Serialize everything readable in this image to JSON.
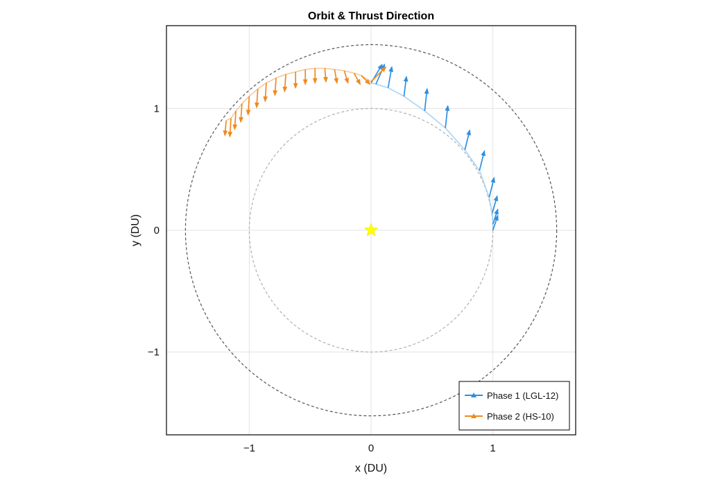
{
  "chart_data": {
    "type": "scatter",
    "title": "Orbit & Thrust Direction",
    "xlabel": "x  (DU)",
    "ylabel": "y  (DU)",
    "xlim": [
      -1.68,
      1.68
    ],
    "ylim": [
      -1.68,
      1.68
    ],
    "xticks": [
      -1,
      0,
      1
    ],
    "yticks": [
      -1,
      0,
      1
    ],
    "xtick_labels": [
      "−1",
      "0",
      "1"
    ],
    "ytick_labels": [
      "−1",
      "0",
      "1"
    ],
    "grid": true,
    "aspect": "equal",
    "legend_position": "bottom-right",
    "reference_circles": [
      {
        "radius": 1.0,
        "style": "dashed",
        "color": "#b0b0b0"
      },
      {
        "radius": 1.524,
        "style": "dashed",
        "color": "#555555"
      }
    ],
    "central_body": {
      "x": 0,
      "y": 0,
      "marker": "star",
      "color": "#ffff00"
    },
    "series": [
      {
        "name": "Phase 1  (LGL-12)",
        "color": "#2e8fe0",
        "trajectory_color": "#a9d4f5",
        "points": [
          {
            "x": 1.0,
            "y": 0.0,
            "dx": 0.04,
            "dy": 0.12
          },
          {
            "x": 1.0,
            "y": 0.05,
            "dx": 0.04,
            "dy": 0.12
          },
          {
            "x": 0.995,
            "y": 0.14,
            "dx": 0.04,
            "dy": 0.14
          },
          {
            "x": 0.97,
            "y": 0.27,
            "dx": 0.04,
            "dy": 0.16
          },
          {
            "x": 0.89,
            "y": 0.49,
            "dx": 0.04,
            "dy": 0.16
          },
          {
            "x": 0.77,
            "y": 0.66,
            "dx": 0.04,
            "dy": 0.16
          },
          {
            "x": 0.61,
            "y": 0.84,
            "dx": 0.02,
            "dy": 0.18
          },
          {
            "x": 0.44,
            "y": 0.98,
            "dx": 0.02,
            "dy": 0.18
          },
          {
            "x": 0.27,
            "y": 1.1,
            "dx": 0.02,
            "dy": 0.16
          },
          {
            "x": 0.14,
            "y": 1.17,
            "dx": 0.03,
            "dy": 0.17
          },
          {
            "x": 0.04,
            "y": 1.2,
            "dx": 0.07,
            "dy": 0.16
          },
          {
            "x": 0.0,
            "y": 1.21,
            "dx": 0.09,
            "dy": 0.15
          }
        ]
      },
      {
        "name": "Phase 2  (HS-10)",
        "color": "#f08a1c",
        "trajectory_color": "#f7c89a",
        "points": [
          {
            "x": 0.0,
            "y": 1.22,
            "dx": 0.12,
            "dy": 0.12
          },
          {
            "x": -0.08,
            "y": 1.27,
            "dx": 0.07,
            "dy": -0.07
          },
          {
            "x": -0.14,
            "y": 1.29,
            "dx": 0.05,
            "dy": -0.09
          },
          {
            "x": -0.22,
            "y": 1.31,
            "dx": 0.03,
            "dy": -0.1
          },
          {
            "x": -0.3,
            "y": 1.32,
            "dx": 0.02,
            "dy": -0.11
          },
          {
            "x": -0.38,
            "y": 1.33,
            "dx": 0.01,
            "dy": -0.11
          },
          {
            "x": -0.46,
            "y": 1.33,
            "dx": 0.0,
            "dy": -0.12
          },
          {
            "x": -0.54,
            "y": 1.32,
            "dx": 0.0,
            "dy": -0.12
          },
          {
            "x": -0.62,
            "y": 1.3,
            "dx": 0.0,
            "dy": -0.13
          },
          {
            "x": -0.7,
            "y": 1.28,
            "dx": -0.01,
            "dy": -0.14
          },
          {
            "x": -0.78,
            "y": 1.25,
            "dx": -0.01,
            "dy": -0.14
          },
          {
            "x": -0.86,
            "y": 1.21,
            "dx": -0.01,
            "dy": -0.15
          },
          {
            "x": -0.93,
            "y": 1.16,
            "dx": -0.01,
            "dy": -0.15
          },
          {
            "x": -1.0,
            "y": 1.1,
            "dx": -0.01,
            "dy": -0.15
          },
          {
            "x": -1.06,
            "y": 1.04,
            "dx": -0.01,
            "dy": -0.15
          },
          {
            "x": -1.11,
            "y": 0.98,
            "dx": -0.01,
            "dy": -0.15
          },
          {
            "x": -1.15,
            "y": 0.92,
            "dx": -0.01,
            "dy": -0.15
          },
          {
            "x": -1.19,
            "y": 0.9,
            "dx": -0.01,
            "dy": -0.12
          }
        ]
      }
    ]
  }
}
